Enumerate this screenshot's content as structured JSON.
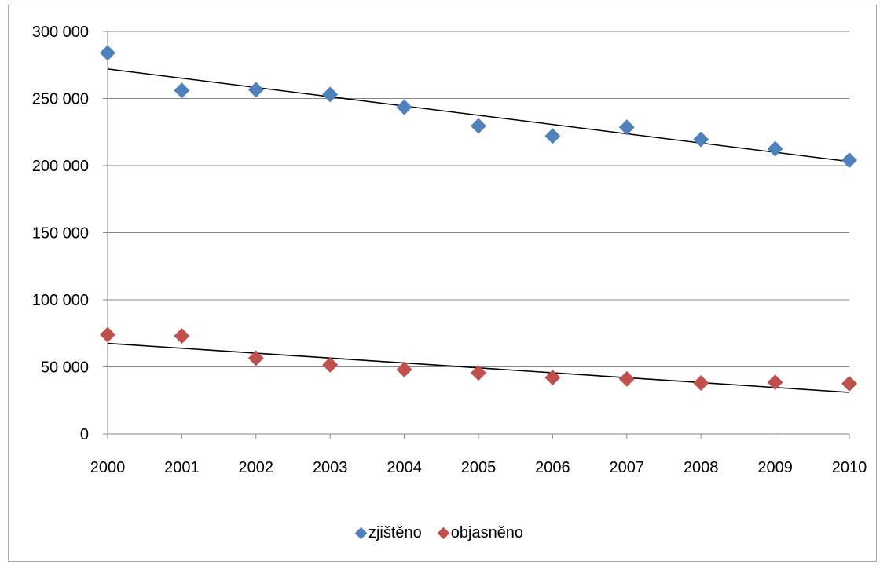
{
  "chart_data": {
    "type": "scatter",
    "x": [
      2000,
      2001,
      2002,
      2003,
      2004,
      2005,
      2006,
      2007,
      2008,
      2009,
      2010
    ],
    "series": [
      {
        "name": "zjištěno",
        "color": "#4f81bd",
        "marker": "diamond",
        "values": [
          284000,
          256000,
          256500,
          253000,
          243500,
          229500,
          222000,
          228500,
          219500,
          212500,
          204000
        ],
        "trendline": {
          "type": "linear",
          "start": 272000,
          "end": 203000
        }
      },
      {
        "name": "objasněno",
        "color": "#c0504d",
        "marker": "diamond",
        "values": [
          74000,
          73000,
          56500,
          51500,
          48000,
          45500,
          42000,
          41000,
          38000,
          38500,
          37500
        ],
        "trendline": {
          "type": "linear",
          "start": 67500,
          "end": 31000
        }
      }
    ],
    "ylim": [
      0,
      300000
    ],
    "yticks": [
      "0",
      "50 000",
      "100 000",
      "150 000",
      "200 000",
      "250 000",
      "300 000"
    ],
    "ytick_values": [
      0,
      50000,
      100000,
      150000,
      200000,
      250000,
      300000
    ],
    "xticks": [
      "2000",
      "2001",
      "2002",
      "2003",
      "2004",
      "2005",
      "2006",
      "2007",
      "2008",
      "2009",
      "2010"
    ],
    "grid": "horizontal",
    "legend_position": "bottom"
  }
}
